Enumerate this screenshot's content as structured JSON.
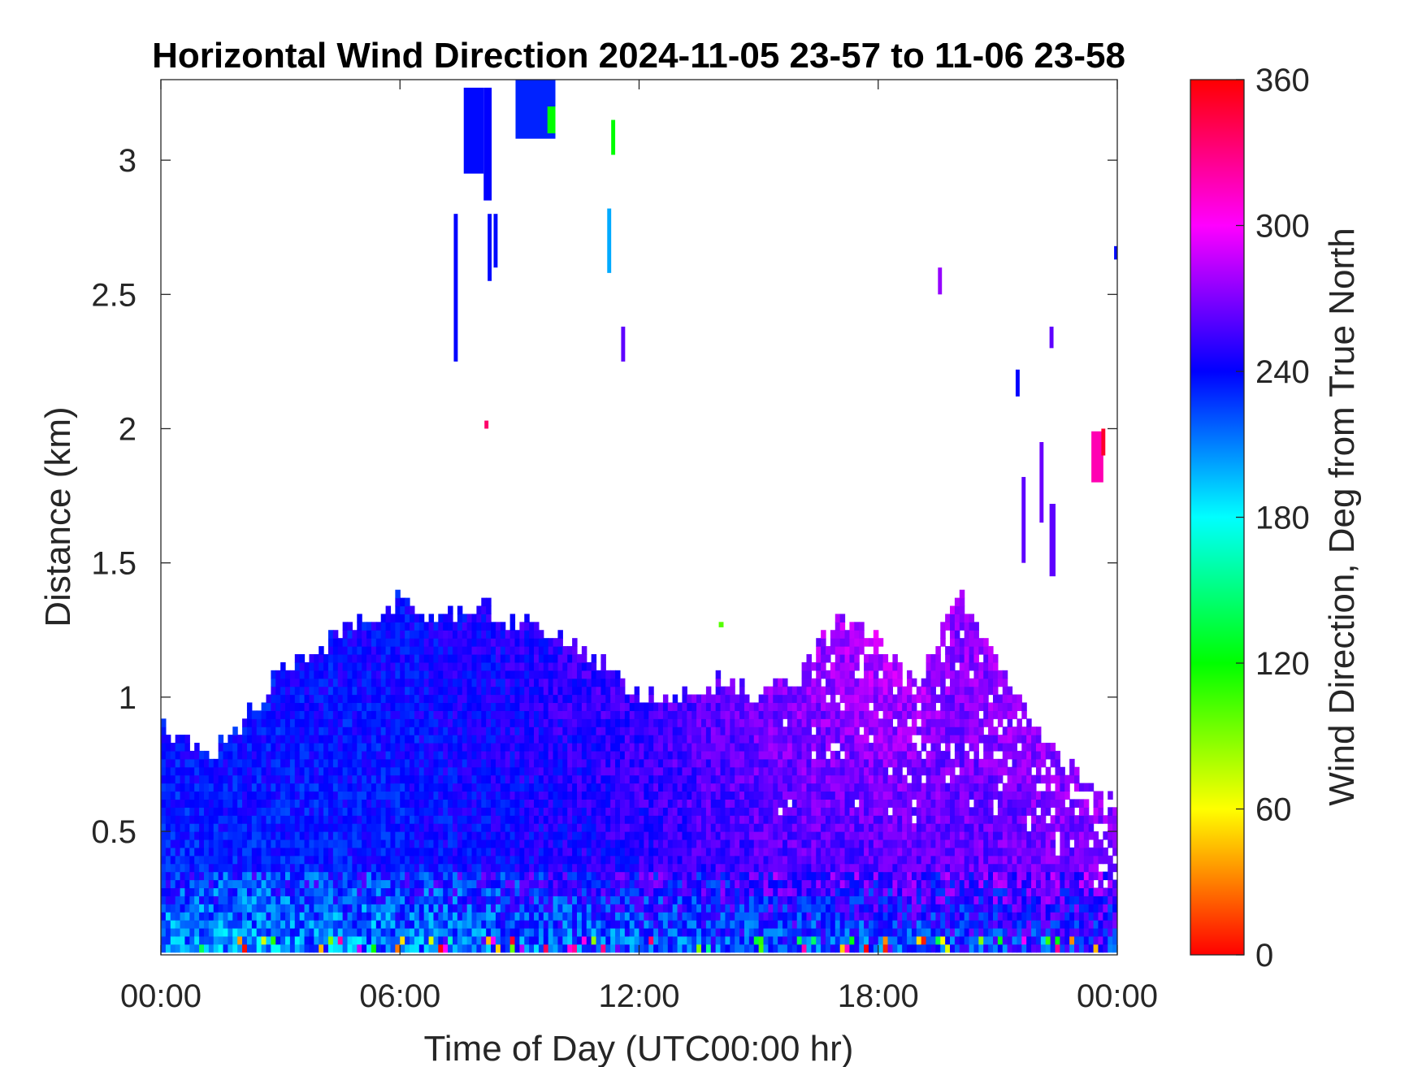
{
  "chart_data": {
    "type": "heatmap",
    "title": "Horizontal Wind Direction 2024-11-05 23-57 to 11-06 23-58",
    "xlabel": "Time of Day (UTC00:00 hr)",
    "ylabel": "Distance (km)",
    "x_ticks": [
      {
        "value": 0,
        "label": "00:00"
      },
      {
        "value": 6,
        "label": "06:00"
      },
      {
        "value": 12,
        "label": "12:00"
      },
      {
        "value": 18,
        "label": "18:00"
      },
      {
        "value": 24,
        "label": "00:00"
      }
    ],
    "y_ticks": [
      {
        "value": 0.5,
        "label": "0.5"
      },
      {
        "value": 1,
        "label": "1"
      },
      {
        "value": 1.5,
        "label": "1.5"
      },
      {
        "value": 2,
        "label": "2"
      },
      {
        "value": 2.5,
        "label": "2.5"
      },
      {
        "value": 3,
        "label": "3"
      }
    ],
    "xlim": [
      0,
      24
    ],
    "ylim": [
      0.04,
      3.3
    ],
    "grid": false,
    "colorbar": {
      "label": "Wind Direction, Deg from True North",
      "range": [
        0,
        360
      ],
      "ticks": [
        {
          "value": 0,
          "label": "0"
        },
        {
          "value": 60,
          "label": "60"
        },
        {
          "value": 120,
          "label": "120"
        },
        {
          "value": 180,
          "label": "180"
        },
        {
          "value": 240,
          "label": "240"
        },
        {
          "value": 300,
          "label": "300"
        },
        {
          "value": 360,
          "label": "360"
        }
      ],
      "colormap": "hsv"
    },
    "boundary_layer_top_km": [
      {
        "t": 0,
        "h": 0.88
      },
      {
        "t": 0.5,
        "h": 0.82
      },
      {
        "t": 1.2,
        "h": 0.76
      },
      {
        "t": 2,
        "h": 0.87
      },
      {
        "t": 3,
        "h": 1.09
      },
      {
        "t": 4,
        "h": 1.16
      },
      {
        "t": 5,
        "h": 1.26
      },
      {
        "t": 6,
        "h": 1.35
      },
      {
        "t": 7,
        "h": 1.28
      },
      {
        "t": 8,
        "h": 1.32
      },
      {
        "t": 9,
        "h": 1.26
      },
      {
        "t": 10,
        "h": 1.22
      },
      {
        "t": 11,
        "h": 1.12
      },
      {
        "t": 12,
        "h": 0.99
      },
      {
        "t": 13,
        "h": 0.99
      },
      {
        "t": 14,
        "h": 1.05
      },
      {
        "t": 15,
        "h": 0.99
      },
      {
        "t": 16,
        "h": 1.06
      },
      {
        "t": 17,
        "h": 1.28
      },
      {
        "t": 18,
        "h": 1.2
      },
      {
        "t": 19,
        "h": 1.04
      },
      {
        "t": 20,
        "h": 1.38
      },
      {
        "t": 21,
        "h": 1.12
      },
      {
        "t": 22,
        "h": 0.86
      },
      {
        "t": 23,
        "h": 0.68
      },
      {
        "t": 24,
        "h": 0.62
      }
    ],
    "direction_field_deg": [
      {
        "t": 0,
        "surface": 200,
        "mid": 232,
        "top": 238
      },
      {
        "t": 6,
        "surface": 205,
        "mid": 236,
        "top": 240
      },
      {
        "t": 12,
        "surface": 215,
        "mid": 248,
        "top": 255
      },
      {
        "t": 15,
        "surface": 220,
        "mid": 258,
        "top": 268
      },
      {
        "t": 18,
        "surface": 215,
        "mid": 260,
        "top": 285
      },
      {
        "t": 20,
        "surface": 225,
        "mid": 262,
        "top": 275
      },
      {
        "t": 24,
        "surface": 230,
        "mid": 268,
        "top": 275
      }
    ],
    "isolated_echoes": [
      {
        "t0": 7.6,
        "t1": 8.1,
        "h0": 2.95,
        "h1": 3.27,
        "deg": 238
      },
      {
        "t0": 8.1,
        "t1": 8.3,
        "h0": 2.85,
        "h1": 3.27,
        "deg": 240
      },
      {
        "t0": 8.9,
        "t1": 9.9,
        "h0": 3.08,
        "h1": 3.3,
        "deg": 232
      },
      {
        "t0": 9.7,
        "t1": 9.9,
        "h0": 3.1,
        "h1": 3.2,
        "deg": 120
      },
      {
        "t0": 7.35,
        "t1": 7.45,
        "h0": 2.25,
        "h1": 2.8,
        "deg": 240
      },
      {
        "t0": 8.2,
        "t1": 8.3,
        "h0": 2.55,
        "h1": 2.8,
        "deg": 238
      },
      {
        "t0": 8.35,
        "t1": 8.45,
        "h0": 2.6,
        "h1": 2.8,
        "deg": 238
      },
      {
        "t0": 11.2,
        "t1": 11.3,
        "h0": 2.58,
        "h1": 2.82,
        "deg": 200
      },
      {
        "t0": 11.3,
        "t1": 11.4,
        "h0": 3.02,
        "h1": 3.15,
        "deg": 120
      },
      {
        "t0": 11.55,
        "t1": 11.65,
        "h0": 2.25,
        "h1": 2.38,
        "deg": 262
      },
      {
        "t0": 8.12,
        "t1": 8.22,
        "h0": 2.0,
        "h1": 2.03,
        "deg": 335
      },
      {
        "t0": 14.0,
        "t1": 14.12,
        "h0": 1.26,
        "h1": 1.28,
        "deg": 100
      },
      {
        "t0": 19.5,
        "t1": 19.6,
        "h0": 2.5,
        "h1": 2.6,
        "deg": 275
      },
      {
        "t0": 21.45,
        "t1": 21.55,
        "h0": 2.12,
        "h1": 2.22,
        "deg": 240
      },
      {
        "t0": 22.3,
        "t1": 22.4,
        "h0": 2.3,
        "h1": 2.38,
        "deg": 262
      },
      {
        "t0": 21.6,
        "t1": 21.7,
        "h0": 1.5,
        "h1": 1.82,
        "deg": 262
      },
      {
        "t0": 22.05,
        "t1": 22.15,
        "h0": 1.65,
        "h1": 1.95,
        "deg": 265
      },
      {
        "t0": 22.3,
        "t1": 22.45,
        "h0": 1.45,
        "h1": 1.72,
        "deg": 262
      },
      {
        "t0": 23.35,
        "t1": 23.65,
        "h0": 1.8,
        "h1": 1.99,
        "deg": 318
      },
      {
        "t0": 23.6,
        "t1": 23.7,
        "h0": 1.9,
        "h1": 2.0,
        "deg": 350
      },
      {
        "t0": 23.92,
        "t1": 24.0,
        "h0": 2.63,
        "h1": 2.68,
        "deg": 238
      }
    ]
  }
}
